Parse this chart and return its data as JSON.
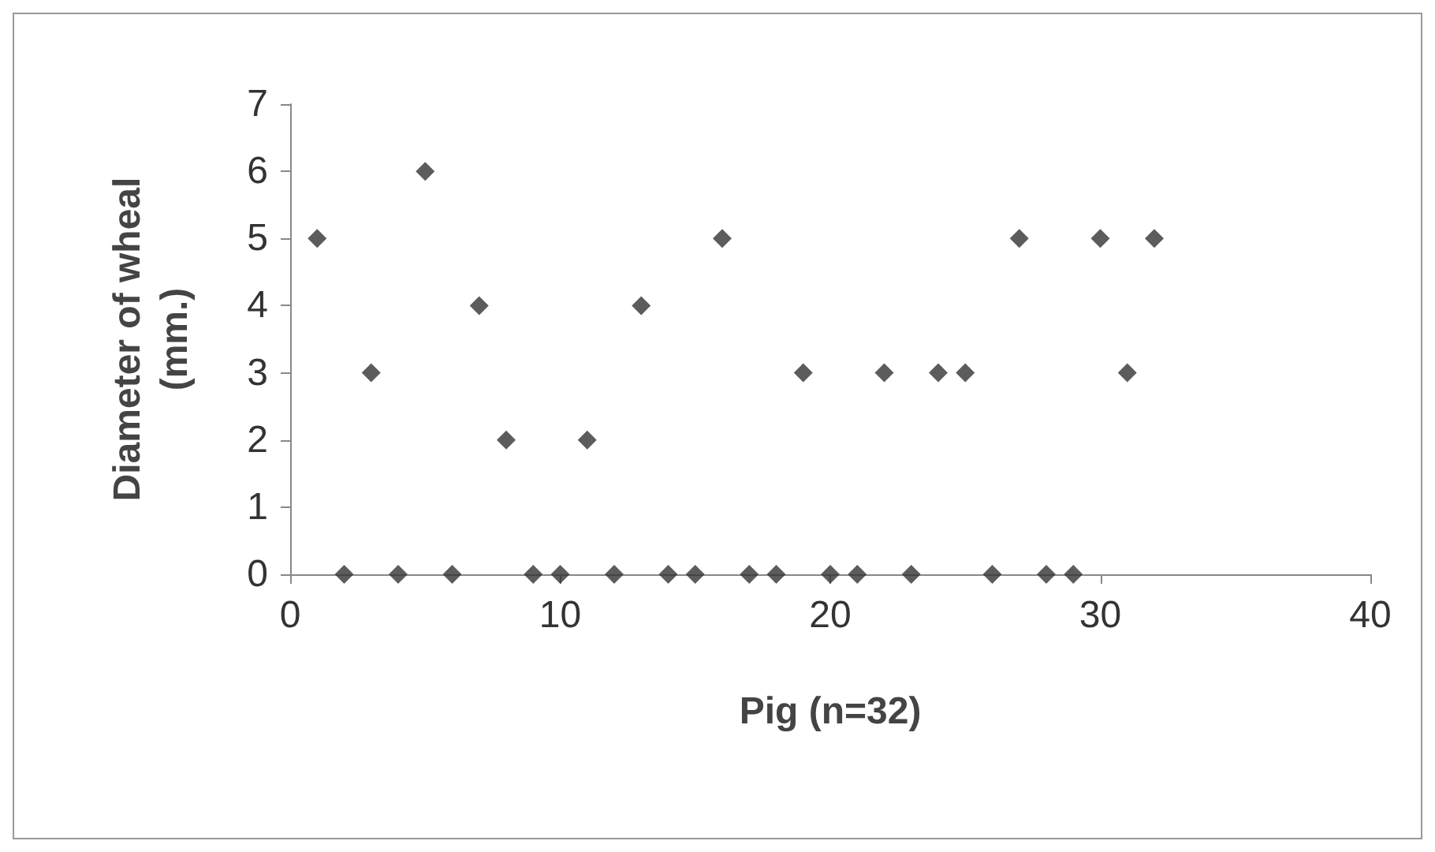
{
  "chart_data": {
    "type": "scatter",
    "xlabel": "Pig (n=32)",
    "ylabel": "Diameter of wheal\n(mm.)",
    "x": [
      1,
      2,
      3,
      4,
      5,
      6,
      7,
      8,
      9,
      10,
      11,
      12,
      13,
      14,
      15,
      16,
      17,
      18,
      19,
      20,
      21,
      22,
      23,
      24,
      25,
      26,
      27,
      28,
      29,
      30,
      31,
      32
    ],
    "series": [
      {
        "color": "#333333",
        "values": [
          5,
          0,
          3,
          0,
          6,
          0,
          4,
          2,
          0,
          0,
          2,
          0,
          4,
          0,
          0,
          5,
          0,
          0,
          3,
          0,
          0,
          3,
          0,
          3,
          3,
          0,
          5,
          0,
          0,
          5,
          3,
          5
        ]
      }
    ],
    "xlim": [
      0,
      40
    ],
    "xticks": [
      0,
      10,
      20,
      30,
      40
    ],
    "ylim": [
      0,
      7
    ],
    "yticks": [
      0,
      1,
      2,
      3,
      4,
      5,
      6,
      7
    ],
    "grid": false,
    "marker": "diamond"
  }
}
